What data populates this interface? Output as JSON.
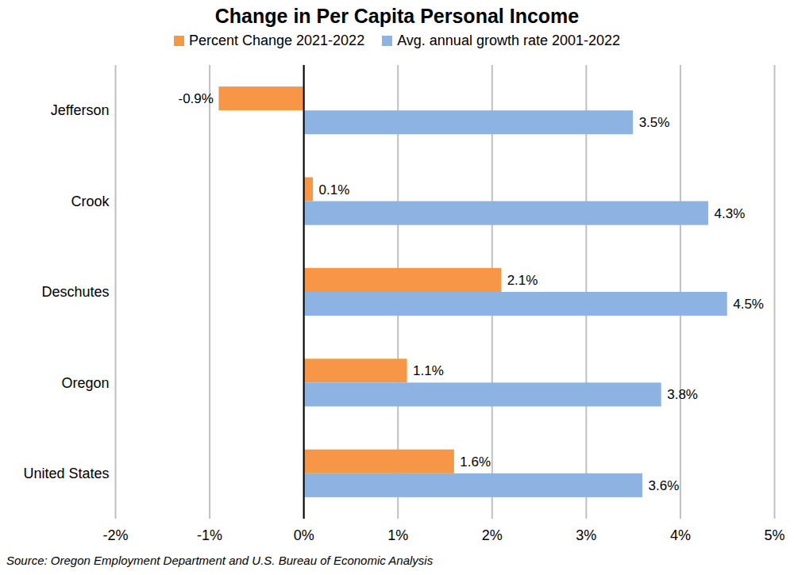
{
  "chart_data": {
    "type": "bar",
    "title": "Change in Per Capita Personal Income",
    "caption": "Source: Oregon Employment Department and U.S. Bureau of Economic Analysis",
    "orientation": "horizontal",
    "categories": [
      "Jefferson",
      "Crook",
      "Deschutes",
      "Oregon",
      "United States"
    ],
    "series": [
      {
        "name": "Percent Change 2021-2022",
        "color": "#f79646",
        "values": [
          -0.9,
          0.1,
          2.1,
          1.1,
          1.6
        ],
        "value_labels": [
          "-0.9%",
          "0.1%",
          "2.1%",
          "1.1%",
          "1.6%"
        ]
      },
      {
        "name": "Avg. annual growth rate 2001-2022",
        "color": "#8db3e2",
        "values": [
          3.5,
          4.3,
          4.5,
          3.8,
          3.6
        ],
        "value_labels": [
          "3.5%",
          "4.3%",
          "4.5%",
          "3.8%",
          "3.6%"
        ]
      }
    ],
    "xlim": [
      -2,
      5
    ],
    "xticks": [
      {
        "value": -2,
        "label": "-2%"
      },
      {
        "value": -1,
        "label": "-1%"
      },
      {
        "value": 0,
        "label": "0%"
      },
      {
        "value": 1,
        "label": "1%"
      },
      {
        "value": 2,
        "label": "2%"
      },
      {
        "value": 3,
        "label": "3%"
      },
      {
        "value": 4,
        "label": "4%"
      },
      {
        "value": 5,
        "label": "5%"
      }
    ],
    "grid": true,
    "legend": "top",
    "data_labels": true
  }
}
